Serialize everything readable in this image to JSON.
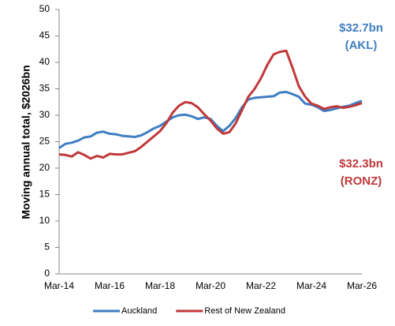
{
  "chart_data": {
    "type": "line",
    "y_label": "Moving annual total, $2026bn",
    "categories": [
      "Mar-14",
      null,
      null,
      null,
      null,
      null,
      null,
      null,
      "Mar-16",
      null,
      null,
      null,
      null,
      null,
      null,
      null,
      "Mar-18",
      null,
      null,
      null,
      null,
      null,
      null,
      null,
      "Mar-20",
      null,
      null,
      null,
      null,
      null,
      null,
      null,
      "Mar-22",
      null,
      null,
      null,
      null,
      null,
      null,
      null,
      "Mar-24",
      null,
      null,
      null,
      null,
      null,
      null,
      null,
      "Mar-26"
    ],
    "series": [
      {
        "name": "Auckland",
        "color": "#3f7ec2",
        "values": [
          23.8,
          24.6,
          24.8,
          25.2,
          25.8,
          26.0,
          26.7,
          26.9,
          26.5,
          26.4,
          26.1,
          26.0,
          25.9,
          26.2,
          26.8,
          27.5,
          28.0,
          28.8,
          29.6,
          30.0,
          30.1,
          29.8,
          29.3,
          29.6,
          29.3,
          28.0,
          27.0,
          28.0,
          29.5,
          31.5,
          33.0,
          33.3,
          33.4,
          33.5,
          33.6,
          34.3,
          34.4,
          34.0,
          33.5,
          32.2,
          32.0,
          31.5,
          30.8,
          31.0,
          31.3,
          31.6,
          31.8,
          32.3,
          32.7
        ]
      },
      {
        "name": "Rest of New Zealand",
        "color": "#c0383a",
        "values": [
          22.6,
          22.5,
          22.2,
          23.0,
          22.5,
          21.8,
          22.3,
          22.0,
          22.7,
          22.6,
          22.6,
          22.9,
          23.2,
          24.0,
          25.0,
          26.0,
          27.0,
          28.5,
          30.5,
          31.8,
          32.5,
          32.3,
          31.5,
          30.2,
          29.0,
          27.5,
          26.5,
          26.8,
          28.5,
          31.0,
          33.5,
          35.0,
          37.0,
          39.5,
          41.5,
          42.0,
          42.2,
          39.0,
          35.5,
          33.5,
          32.2,
          31.8,
          31.2,
          31.5,
          31.7,
          31.4,
          31.6,
          31.9,
          32.3
        ]
      }
    ],
    "annotations": [
      {
        "lines": [
          "$32.7bn",
          "(AKL)"
        ],
        "color": "#3f7ec2"
      },
      {
        "lines": [
          "$32.3bn",
          "(RONZ)"
        ],
        "color": "#c0383a"
      }
    ],
    "ylim": [
      0,
      50
    ],
    "yticks": [
      0,
      5,
      10,
      15,
      20,
      25,
      30,
      35,
      40,
      45,
      50
    ],
    "grid": false,
    "legend": "bottom"
  }
}
